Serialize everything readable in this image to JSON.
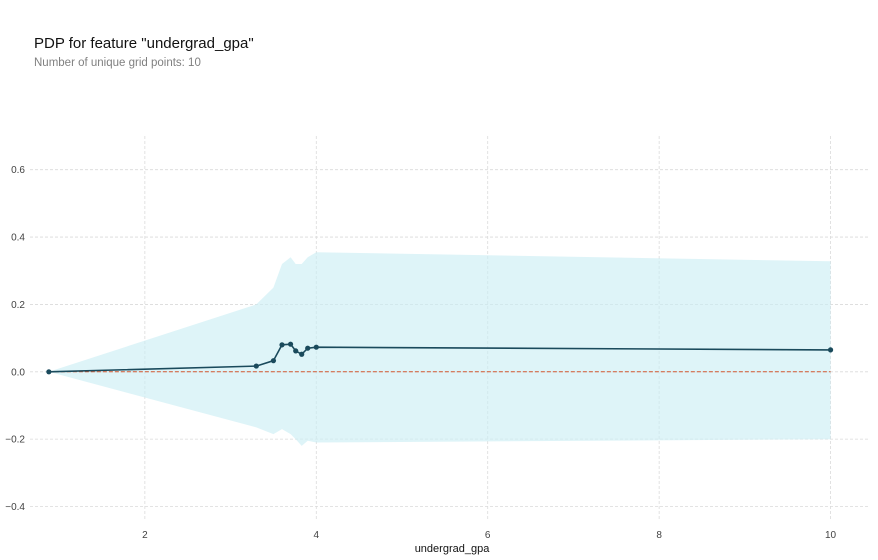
{
  "title": "PDP for feature \"undergrad_gpa\"",
  "subtitle": "Number of unique grid points: 10",
  "chart_data": {
    "type": "line",
    "xlabel": "undergrad_gpa",
    "ylabel": "",
    "xlim": [
      0.66,
      10.46
    ],
    "ylim": [
      -0.44,
      0.7
    ],
    "xticks": [
      2,
      4,
      6,
      8,
      10
    ],
    "yticks": [
      -0.4,
      -0.2,
      0.0,
      0.2,
      0.4,
      0.6
    ],
    "xtick_labels": [
      "2",
      "4",
      "6",
      "8",
      "10"
    ],
    "ytick_labels": [
      "−0.4",
      "−0.2",
      "0.0",
      "0.2",
      "0.4",
      "0.6"
    ],
    "grid": true,
    "series": [
      {
        "x": [
          0.88,
          3.3,
          3.5,
          3.6,
          3.7,
          3.76,
          3.83,
          3.9,
          4.0,
          10.0
        ],
        "y": [
          0.0,
          0.017,
          0.033,
          0.08,
          0.082,
          0.062,
          0.052,
          0.07,
          0.073,
          0.065
        ],
        "color": "#1a4a5c"
      }
    ],
    "confidence_band": {
      "x": [
        0.88,
        3.3,
        3.5,
        3.6,
        3.7,
        3.76,
        3.83,
        3.9,
        4.0,
        10.0
      ],
      "upper": [
        0.0,
        0.2,
        0.25,
        0.32,
        0.34,
        0.32,
        0.32,
        0.34,
        0.355,
        0.328
      ],
      "lower": [
        0.0,
        -0.165,
        -0.185,
        -0.17,
        -0.185,
        -0.2,
        -0.22,
        -0.205,
        -0.21,
        -0.2
      ],
      "color": "#cdeef5"
    },
    "reference_line": {
      "y": 0.0,
      "color": "#d2572f",
      "style": "dashed"
    },
    "colors": {
      "line": "#1a4a5c",
      "band": "#cdeef5",
      "grid": "#dadada",
      "reference": "#d2572f"
    }
  }
}
